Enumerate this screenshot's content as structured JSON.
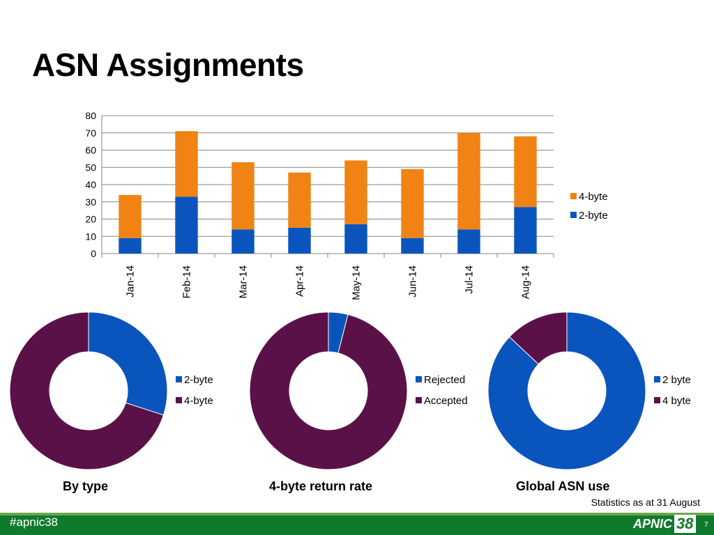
{
  "slide": {
    "title": "ASN Assignments",
    "stats_note": "Statistics as at 31 August",
    "hashtag": "#apnic38",
    "logo_text": "APNIC",
    "logo_number": "38",
    "page_number": "7"
  },
  "colors": {
    "orange": "#f08314",
    "blue": "#0a55bd",
    "purple": "#5a1148",
    "footer_green": "#107a2c"
  },
  "chart_data": [
    {
      "type": "bar",
      "stacked": true,
      "title": "",
      "xlabel": "",
      "ylabel": "",
      "ylim": [
        0,
        80
      ],
      "yticks": [
        0,
        10,
        20,
        30,
        40,
        50,
        60,
        70,
        80
      ],
      "grid": true,
      "legend_position": "right",
      "categories": [
        "Jan-14",
        "Feb-14",
        "Mar-14",
        "Apr-14",
        "May-14",
        "Jun-14",
        "Jul-14",
        "Aug-14"
      ],
      "series": [
        {
          "name": "2-byte",
          "color": "#0a55bd",
          "values": [
            9,
            33,
            14,
            15,
            17,
            9,
            14,
            27
          ]
        },
        {
          "name": "4-byte",
          "color": "#f08314",
          "values": [
            25,
            38,
            39,
            32,
            37,
            40,
            56,
            41
          ]
        }
      ],
      "legend": [
        {
          "name": "4-byte",
          "color": "#f08314"
        },
        {
          "name": "2-byte",
          "color": "#0a55bd"
        }
      ]
    },
    {
      "type": "pie",
      "donut": true,
      "caption": "By type",
      "legend_position": "right",
      "labels": [
        "2-byte",
        "4-byte"
      ],
      "values": [
        30,
        70
      ],
      "colors": [
        "#0a55bd",
        "#5a1148"
      ]
    },
    {
      "type": "pie",
      "donut": true,
      "caption": "4-byte return rate",
      "legend_position": "right",
      "labels": [
        "Rejected",
        "Accepted"
      ],
      "values": [
        4,
        96
      ],
      "colors": [
        "#0a55bd",
        "#5a1148"
      ]
    },
    {
      "type": "pie",
      "donut": true,
      "caption": "Global ASN use",
      "legend_position": "right",
      "labels": [
        "2 byte",
        "4 byte"
      ],
      "values": [
        87,
        13
      ],
      "colors": [
        "#0a55bd",
        "#5a1148"
      ]
    }
  ]
}
